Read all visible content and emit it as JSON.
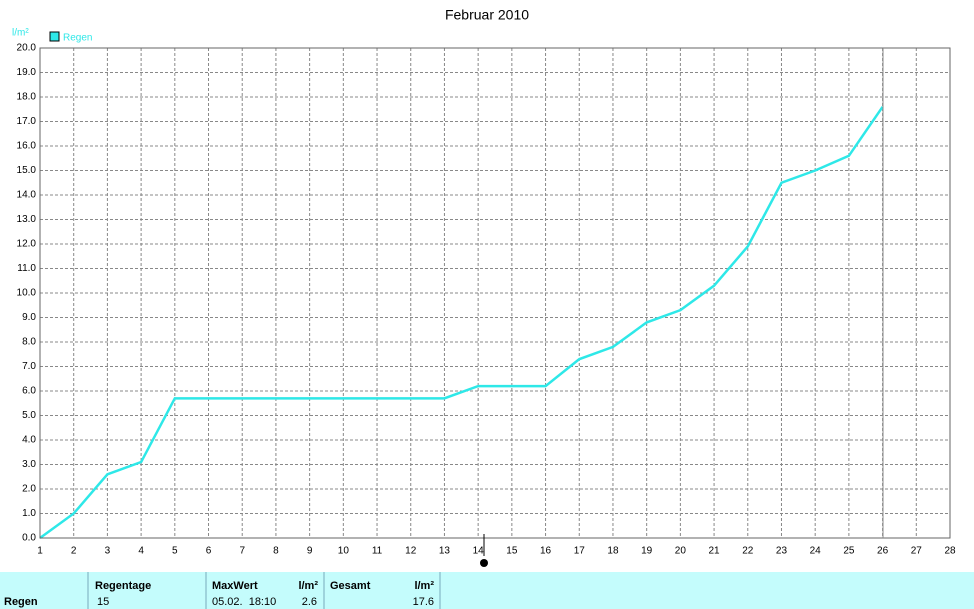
{
  "chart_data": {
    "type": "line",
    "title": "Februar 2010",
    "y_label": "l/m²",
    "x": [
      1,
      2,
      3,
      4,
      5,
      6,
      7,
      8,
      9,
      10,
      11,
      12,
      13,
      14,
      15,
      16,
      17,
      18,
      19,
      20,
      21,
      22,
      23,
      24,
      25,
      26,
      27,
      28
    ],
    "series": [
      {
        "name": "Regen",
        "color": "#2ee8e8",
        "values": [
          0.0,
          1.0,
          2.6,
          3.1,
          5.7,
          5.7,
          5.7,
          5.7,
          5.7,
          5.7,
          5.7,
          5.7,
          5.7,
          6.2,
          6.2,
          6.2,
          7.3,
          7.8,
          8.8,
          9.3,
          10.3,
          11.9,
          14.5,
          15.0,
          15.6,
          17.6,
          null,
          null
        ]
      }
    ],
    "xlim": [
      1,
      28
    ],
    "xticks": [
      1,
      2,
      3,
      4,
      5,
      6,
      7,
      8,
      9,
      10,
      11,
      12,
      13,
      14,
      15,
      16,
      17,
      18,
      19,
      20,
      21,
      22,
      23,
      24,
      25,
      26,
      27,
      28
    ],
    "ylim": [
      0,
      20
    ],
    "yticks": [
      {
        "value": 0,
        "label": "0.0"
      },
      {
        "value": 1,
        "label": "1.0"
      },
      {
        "value": 2,
        "label": "2.0"
      },
      {
        "value": 3,
        "label": "3.0"
      },
      {
        "value": 4,
        "label": "4.0"
      },
      {
        "value": 5,
        "label": "5.0"
      },
      {
        "value": 6,
        "label": "6.0"
      },
      {
        "value": 7,
        "label": "7.0"
      },
      {
        "value": 8,
        "label": "8.0"
      },
      {
        "value": 9,
        "label": "9.0"
      },
      {
        "value": 10,
        "label": "10.0"
      },
      {
        "value": 11,
        "label": "11.0"
      },
      {
        "value": 12,
        "label": "12.0"
      },
      {
        "value": 13,
        "label": "13.0"
      },
      {
        "value": 14,
        "label": "14.0"
      },
      {
        "value": 15,
        "label": "15.0"
      },
      {
        "value": 16,
        "label": "16.0"
      },
      {
        "value": 17,
        "label": "17.0"
      },
      {
        "value": 18,
        "label": "18.0"
      },
      {
        "value": 19,
        "label": "19.0"
      },
      {
        "value": 20,
        "label": "20.0"
      }
    ],
    "grid": true,
    "legend": "top-left"
  },
  "table": {
    "row_label": "Regen",
    "regentage": {
      "header": "Regentage",
      "value": "15"
    },
    "maxwert": {
      "header": "MaxWert",
      "date": "05.02.  18:10",
      "unit": "l/m²",
      "value": "2.6"
    },
    "gesamt": {
      "header": "Gesamt",
      "unit": "l/m²",
      "value": "17.6"
    }
  }
}
